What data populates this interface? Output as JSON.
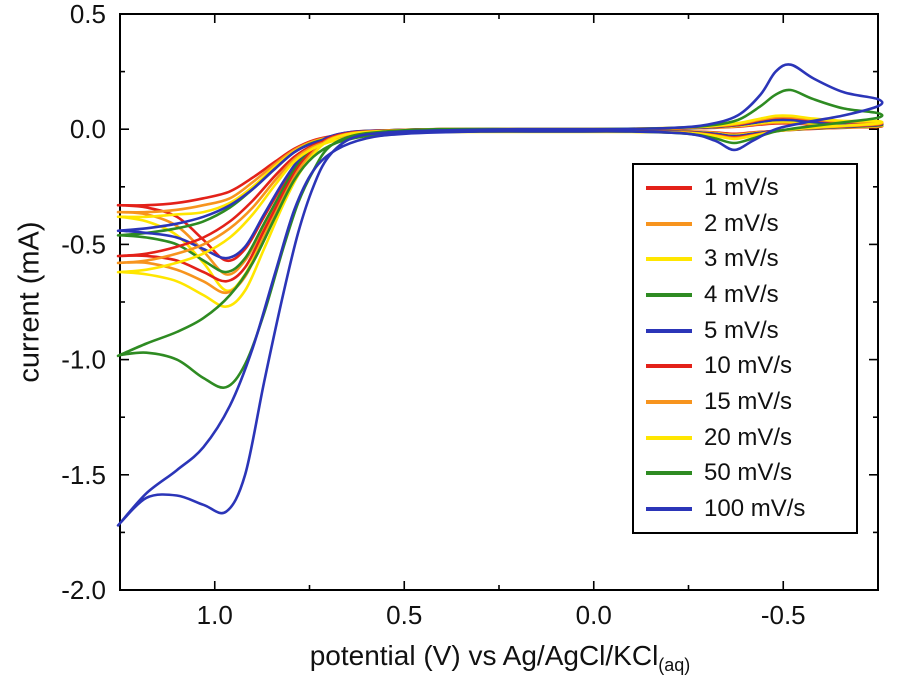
{
  "figure": {
    "background": "#ffffff"
  },
  "chart_data": {
    "type": "line",
    "title": "",
    "xlabel": "potential (V) vs Ag/AgCl/KCl",
    "xlabel_subscript": "(aq)",
    "ylabel": "current (mA)",
    "x_axis": {
      "min": -0.75,
      "max": 1.25,
      "reversed": true,
      "major_tick_values": [
        1.0,
        0.5,
        0.0,
        -0.5
      ],
      "major_tick_labels": [
        "1.0",
        "0.5",
        "0.0",
        "-0.5"
      ],
      "minor_tick_values": [
        0.75,
        0.25,
        -0.25
      ]
    },
    "y_axis": {
      "min": -2.0,
      "max": 0.5,
      "major_tick_values": [
        0.5,
        0.0,
        -0.5,
        -1.0,
        -1.5,
        -2.0
      ],
      "major_tick_labels": [
        "0.5",
        "0.0",
        "-0.5",
        "-1.0",
        "-1.5",
        "-2.0"
      ],
      "minor_tick_values": [
        0.25,
        -0.25,
        -0.75,
        -1.25,
        -1.75
      ]
    },
    "legend": {
      "position": "middle-right",
      "border_color": "#000000",
      "background": "#ffffff"
    },
    "x_forward": [
      1.25,
      1.18,
      1.1,
      1.03,
      0.97,
      0.92,
      0.87,
      0.82,
      0.78,
      0.74,
      0.7,
      0.64,
      0.55,
      0.4,
      0.2,
      0.0,
      -0.2,
      -0.3,
      -0.38,
      -0.44,
      -0.48,
      -0.52,
      -0.58,
      -0.66,
      -0.75
    ],
    "x_return": [
      -0.75,
      -0.66,
      -0.56,
      -0.48,
      -0.42,
      -0.37,
      -0.32,
      -0.25,
      -0.1,
      0.1,
      0.3,
      0.5,
      0.6,
      0.68,
      0.74,
      0.79,
      0.84,
      0.9,
      0.96,
      1.03,
      1.1,
      1.18,
      1.25
    ],
    "series": [
      {
        "name": "1 mV/s",
        "color": "#e32119",
        "y_forward": [
          -0.33,
          -0.34,
          -0.38,
          -0.48,
          -0.57,
          -0.52,
          -0.38,
          -0.24,
          -0.14,
          -0.08,
          -0.035,
          -0.012,
          -0.005,
          0,
          0,
          0,
          0.002,
          0.005,
          0.011,
          0.02,
          0.025,
          0.025,
          0.02,
          0.015,
          0.015
        ],
        "y_return": [
          0.01,
          0.006,
          0.0,
          -0.007,
          -0.014,
          -0.02,
          -0.014,
          -0.009,
          -0.006,
          -0.006,
          -0.006,
          -0.008,
          -0.013,
          -0.027,
          -0.048,
          -0.085,
          -0.14,
          -0.21,
          -0.27,
          -0.3,
          -0.32,
          -0.33,
          -0.33
        ]
      },
      {
        "name": "2 mV/s",
        "color": "#f7941e",
        "y_forward": [
          -0.36,
          -0.37,
          -0.42,
          -0.53,
          -0.63,
          -0.57,
          -0.42,
          -0.27,
          -0.16,
          -0.09,
          -0.04,
          -0.014,
          -0.006,
          0,
          0,
          0,
          0.003,
          0.006,
          0.013,
          0.023,
          0.028,
          0.028,
          0.022,
          0.017,
          0.017
        ],
        "y_return": [
          0.012,
          0.007,
          0.001,
          -0.008,
          -0.016,
          -0.024,
          -0.016,
          -0.01,
          -0.007,
          -0.007,
          -0.007,
          -0.009,
          -0.015,
          -0.03,
          -0.052,
          -0.09,
          -0.15,
          -0.23,
          -0.3,
          -0.33,
          -0.35,
          -0.36,
          -0.36
        ]
      },
      {
        "name": "3 mV/s",
        "color": "#ffe600",
        "y_forward": [
          -0.38,
          -0.4,
          -0.46,
          -0.58,
          -0.7,
          -0.63,
          -0.46,
          -0.29,
          -0.17,
          -0.095,
          -0.042,
          -0.015,
          -0.006,
          0,
          0,
          0,
          0.003,
          0.007,
          0.015,
          0.027,
          0.033,
          0.033,
          0.026,
          0.02,
          0.02
        ],
        "y_return": [
          0.014,
          0.008,
          0.002,
          -0.008,
          -0.018,
          -0.027,
          -0.018,
          -0.011,
          -0.008,
          -0.008,
          -0.008,
          -0.01,
          -0.016,
          -0.032,
          -0.056,
          -0.096,
          -0.16,
          -0.25,
          -0.32,
          -0.36,
          -0.37,
          -0.38,
          -0.38
        ]
      },
      {
        "name": "4 mV/s",
        "color": "#2e8b22",
        "y_forward": [
          -0.46,
          -0.47,
          -0.5,
          -0.57,
          -0.62,
          -0.56,
          -0.41,
          -0.26,
          -0.15,
          -0.085,
          -0.038,
          -0.013,
          -0.005,
          0,
          0,
          0,
          0.004,
          0.008,
          0.018,
          0.032,
          0.04,
          0.04,
          0.03,
          0.024,
          0.022
        ],
        "y_return": [
          0.016,
          0.009,
          0.002,
          -0.008,
          -0.02,
          -0.03,
          -0.02,
          -0.012,
          -0.008,
          -0.008,
          -0.008,
          -0.01,
          -0.017,
          -0.034,
          -0.058,
          -0.1,
          -0.17,
          -0.26,
          -0.34,
          -0.4,
          -0.43,
          -0.45,
          -0.46
        ]
      },
      {
        "name": "5 mV/s",
        "color": "#2b35b8",
        "y_forward": [
          -0.44,
          -0.45,
          -0.47,
          -0.52,
          -0.56,
          -0.51,
          -0.37,
          -0.23,
          -0.135,
          -0.075,
          -0.034,
          -0.012,
          -0.005,
          0,
          0,
          0,
          0.004,
          0.008,
          0.018,
          0.032,
          0.04,
          0.04,
          0.032,
          0.025,
          0.025
        ],
        "y_return": [
          0.018,
          0.01,
          0.003,
          -0.007,
          -0.02,
          -0.03,
          -0.02,
          -0.012,
          -0.008,
          -0.008,
          -0.008,
          -0.01,
          -0.018,
          -0.035,
          -0.06,
          -0.1,
          -0.17,
          -0.26,
          -0.33,
          -0.38,
          -0.41,
          -0.43,
          -0.44
        ]
      },
      {
        "name": "10 mV/s",
        "color": "#e32119",
        "y_forward": [
          -0.55,
          -0.55,
          -0.57,
          -0.62,
          -0.66,
          -0.6,
          -0.44,
          -0.28,
          -0.165,
          -0.09,
          -0.04,
          -0.015,
          -0.006,
          0,
          0,
          0,
          0.004,
          0.01,
          0.02,
          0.04,
          0.05,
          0.05,
          0.04,
          0.03,
          0.03
        ],
        "y_return": [
          0.02,
          0.012,
          0.004,
          -0.008,
          -0.025,
          -0.035,
          -0.025,
          -0.014,
          -0.01,
          -0.01,
          -0.01,
          -0.012,
          -0.02,
          -0.04,
          -0.07,
          -0.12,
          -0.2,
          -0.31,
          -0.4,
          -0.47,
          -0.51,
          -0.54,
          -0.55
        ]
      },
      {
        "name": "15 mV/s",
        "color": "#f7941e",
        "y_forward": [
          -0.58,
          -0.58,
          -0.61,
          -0.66,
          -0.71,
          -0.64,
          -0.47,
          -0.3,
          -0.18,
          -0.1,
          -0.045,
          -0.017,
          -0.007,
          0,
          0,
          0,
          0.005,
          0.011,
          0.023,
          0.042,
          0.052,
          0.052,
          0.042,
          0.032,
          0.032
        ],
        "y_return": [
          0.022,
          0.013,
          0.004,
          -0.009,
          -0.027,
          -0.038,
          -0.027,
          -0.015,
          -0.011,
          -0.011,
          -0.011,
          -0.013,
          -0.022,
          -0.044,
          -0.076,
          -0.13,
          -0.22,
          -0.34,
          -0.43,
          -0.5,
          -0.54,
          -0.57,
          -0.58
        ]
      },
      {
        "name": "20 mV/s",
        "color": "#ffe600",
        "y_forward": [
          -0.62,
          -0.63,
          -0.66,
          -0.72,
          -0.77,
          -0.7,
          -0.52,
          -0.33,
          -0.2,
          -0.11,
          -0.05,
          -0.019,
          -0.008,
          0,
          0,
          0,
          0.005,
          0.012,
          0.026,
          0.046,
          0.058,
          0.058,
          0.046,
          0.036,
          0.035
        ],
        "y_return": [
          0.025,
          0.015,
          0.005,
          -0.009,
          -0.029,
          -0.042,
          -0.029,
          -0.016,
          -0.012,
          -0.012,
          -0.012,
          -0.014,
          -0.024,
          -0.048,
          -0.083,
          -0.14,
          -0.24,
          -0.37,
          -0.47,
          -0.54,
          -0.58,
          -0.61,
          -0.62
        ]
      },
      {
        "name": "50 mV/s",
        "color": "#2e8b22",
        "y_forward": [
          -0.98,
          -0.97,
          -1.0,
          -1.08,
          -1.12,
          -1.02,
          -0.8,
          -0.52,
          -0.32,
          -0.18,
          -0.08,
          -0.03,
          -0.01,
          0,
          0,
          0,
          0.005,
          0.015,
          0.04,
          0.1,
          0.15,
          0.17,
          0.13,
          0.09,
          0.07
        ],
        "y_return": [
          0.05,
          0.03,
          0.01,
          -0.01,
          -0.04,
          -0.06,
          -0.04,
          -0.02,
          -0.01,
          -0.01,
          -0.01,
          -0.015,
          -0.03,
          -0.06,
          -0.12,
          -0.22,
          -0.38,
          -0.58,
          -0.72,
          -0.82,
          -0.88,
          -0.93,
          -0.98
        ]
      },
      {
        "name": "100 mV/s",
        "color": "#2b35b8",
        "y_forward": [
          -1.71,
          -1.6,
          -1.59,
          -1.63,
          -1.66,
          -1.5,
          -1.1,
          -0.72,
          -0.45,
          -0.25,
          -0.12,
          -0.04,
          -0.015,
          -0.005,
          0,
          0,
          0.005,
          0.02,
          0.06,
          0.15,
          0.25,
          0.28,
          0.22,
          0.16,
          0.13
        ],
        "y_return": [
          0.1,
          0.06,
          0.03,
          0.0,
          -0.05,
          -0.09,
          -0.05,
          -0.02,
          -0.01,
          -0.01,
          -0.01,
          -0.02,
          -0.04,
          -0.09,
          -0.18,
          -0.35,
          -0.62,
          -0.95,
          -1.2,
          -1.38,
          -1.48,
          -1.58,
          -1.71
        ]
      }
    ]
  }
}
